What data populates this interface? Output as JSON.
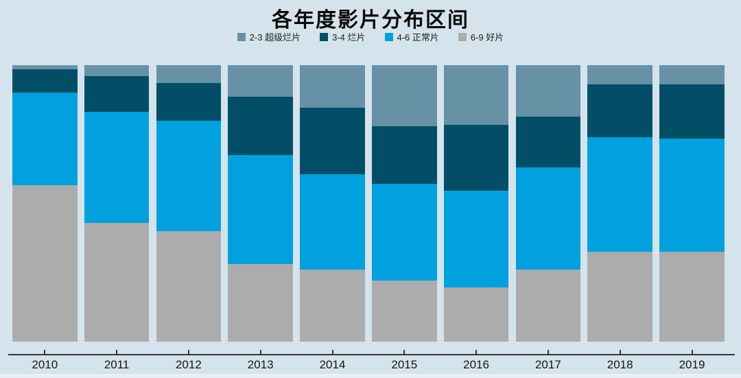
{
  "colors": {
    "background": "#d5e3ec",
    "axis": "#34383c",
    "title_text": "#0a0a0a",
    "label_text": "#141618",
    "series_super_bad": "#6792a6",
    "series_bad": "#024e66",
    "series_normal": "#00a1de",
    "series_good": "#acacac"
  },
  "chart_data": {
    "type": "bar",
    "stacked": true,
    "percent": true,
    "title": "各年度影片分布区间",
    "xlabel": "",
    "ylabel": "",
    "ylim": [
      0,
      100
    ],
    "grid": false,
    "legend_position": "top",
    "categories": [
      "2010",
      "2011",
      "2012",
      "2013",
      "2014",
      "2015",
      "2016",
      "2017",
      "2018",
      "2019"
    ],
    "series": [
      {
        "name": "2-3 超级烂片",
        "color": "#6792a6",
        "values": [
          1.5,
          4,
          6.5,
          11.5,
          15.5,
          22,
          21.5,
          18.5,
          7,
          7
        ]
      },
      {
        "name": "3-4 烂片",
        "color": "#024e66",
        "values": [
          8.5,
          13,
          13.5,
          21,
          24,
          21,
          24,
          18.5,
          19,
          19.5
        ]
      },
      {
        "name": "4-6 正常片",
        "color": "#00a1de",
        "values": [
          33.5,
          40,
          40,
          39.5,
          34.5,
          35,
          35,
          37,
          41.5,
          41
        ]
      },
      {
        "name": "6-9 好片",
        "color": "#acacac",
        "values": [
          56.5,
          43,
          40,
          28,
          26,
          22,
          19.5,
          26,
          32.5,
          32.5
        ]
      }
    ]
  }
}
